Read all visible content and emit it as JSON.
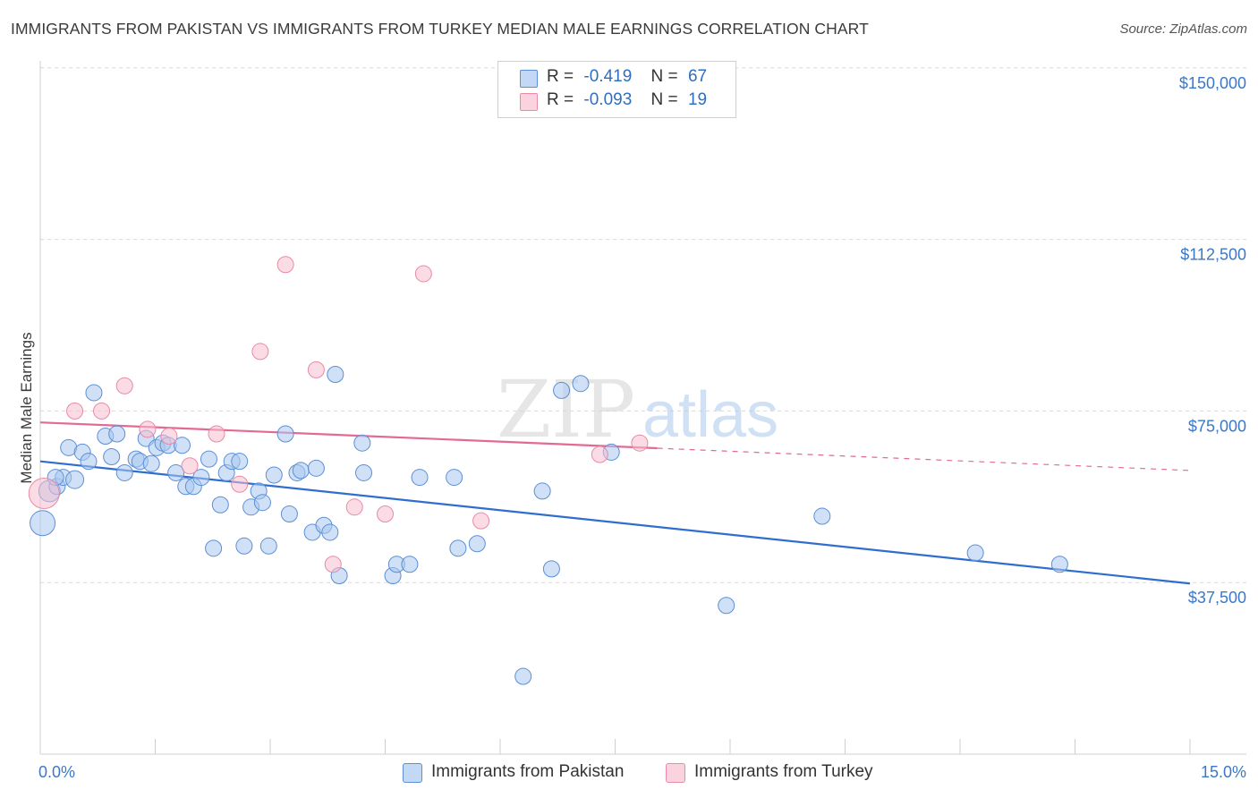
{
  "title": "IMMIGRANTS FROM PAKISTAN VS IMMIGRANTS FROM TURKEY MEDIAN MALE EARNINGS CORRELATION CHART",
  "source": "Source: ZipAtlas.com",
  "watermark": {
    "zip": "ZIP",
    "atlas": "atlas"
  },
  "stats": {
    "r_label": "R =",
    "n_label": "N =",
    "rows": [
      {
        "r": "-0.419",
        "n": "67"
      },
      {
        "r": "-0.093",
        "n": "19"
      }
    ]
  },
  "colors": {
    "pakistan_fill": "#a9c8f0",
    "pakistan_stroke": "#5b8fd6",
    "pakistan_line": "#2f6ecf",
    "turkey_fill": "#f7bfd0",
    "turkey_stroke": "#e88aa8",
    "turkey_line": "#e26a93",
    "axis_text": "#3a78c9",
    "grid": "#d9d9d9"
  },
  "chart_data": {
    "type": "scatter",
    "title": "IMMIGRANTS FROM PAKISTAN VS IMMIGRANTS FROM TURKEY MEDIAN MALE EARNINGS CORRELATION CHART",
    "xlabel": "",
    "ylabel": "Median Male Earnings",
    "xlim": [
      0,
      15
    ],
    "ylim": [
      0,
      157000
    ],
    "x_tick_labels": [
      "0.0%",
      "15.0%"
    ],
    "y_ticks": [
      37500,
      75000,
      112500,
      150000
    ],
    "y_tick_labels": [
      "$37,500",
      "$75,000",
      "$112,500",
      "$150,000"
    ],
    "grid": true,
    "legend_position": "bottom",
    "series": [
      {
        "name": "Immigrants from Pakistan",
        "trend": {
          "x": [
            0,
            15
          ],
          "y": [
            64000,
            37300
          ],
          "solid_to": 15
        },
        "points": [
          [
            0.03,
            50500,
            14
          ],
          [
            0.12,
            57500,
            12
          ],
          [
            0.22,
            58500,
            9
          ],
          [
            0.3,
            60500,
            9
          ],
          [
            0.45,
            60000,
            10
          ],
          [
            0.37,
            67000,
            9
          ],
          [
            0.55,
            66000,
            9
          ],
          [
            0.63,
            64000,
            9
          ],
          [
            0.7,
            79000,
            9
          ],
          [
            0.85,
            69500,
            9
          ],
          [
            0.93,
            65000,
            9
          ],
          [
            1.0,
            70000,
            9
          ],
          [
            1.1,
            61500,
            9
          ],
          [
            1.25,
            64500,
            9
          ],
          [
            1.3,
            64000,
            9
          ],
          [
            1.38,
            69000,
            9
          ],
          [
            1.45,
            63500,
            9
          ],
          [
            1.52,
            67000,
            9
          ],
          [
            1.6,
            68000,
            9
          ],
          [
            1.67,
            67500,
            9
          ],
          [
            1.77,
            61500,
            9
          ],
          [
            1.85,
            67500,
            9
          ],
          [
            1.9,
            58500,
            9
          ],
          [
            2.0,
            58500,
            9
          ],
          [
            2.1,
            60500,
            9
          ],
          [
            2.2,
            64500,
            9
          ],
          [
            2.26,
            45000,
            9
          ],
          [
            2.35,
            54500,
            9
          ],
          [
            2.43,
            61500,
            9
          ],
          [
            2.5,
            64000,
            9
          ],
          [
            2.6,
            64000,
            9
          ],
          [
            2.66,
            45500,
            9
          ],
          [
            2.75,
            54000,
            9
          ],
          [
            2.85,
            57500,
            9
          ],
          [
            2.9,
            55000,
            9
          ],
          [
            2.98,
            45500,
            9
          ],
          [
            3.05,
            61000,
            9
          ],
          [
            3.2,
            70000,
            9
          ],
          [
            3.25,
            52500,
            9
          ],
          [
            3.35,
            61500,
            9
          ],
          [
            3.4,
            62000,
            9
          ],
          [
            3.55,
            48500,
            9
          ],
          [
            3.6,
            62500,
            9
          ],
          [
            3.7,
            50000,
            9
          ],
          [
            3.78,
            48500,
            9
          ],
          [
            3.85,
            83000,
            9
          ],
          [
            3.9,
            39000,
            9
          ],
          [
            4.2,
            68000,
            9
          ],
          [
            4.22,
            61500,
            9
          ],
          [
            4.6,
            39000,
            9
          ],
          [
            4.65,
            41500,
            9
          ],
          [
            4.82,
            41500,
            9
          ],
          [
            4.95,
            60500,
            9
          ],
          [
            5.4,
            60500,
            9
          ],
          [
            5.45,
            45000,
            9
          ],
          [
            5.7,
            46000,
            9
          ],
          [
            6.3,
            17000,
            9
          ],
          [
            6.55,
            57500,
            9
          ],
          [
            6.67,
            40500,
            9
          ],
          [
            6.8,
            79500,
            9
          ],
          [
            7.05,
            81000,
            9
          ],
          [
            7.45,
            66000,
            9
          ],
          [
            8.95,
            32500,
            9
          ],
          [
            10.2,
            52000,
            9
          ],
          [
            12.2,
            44000,
            9
          ],
          [
            13.3,
            41500,
            9
          ],
          [
            0.2,
            60500,
            9
          ]
        ]
      },
      {
        "name": "Immigrants from Turkey",
        "trend": {
          "x": [
            0,
            15
          ],
          "y": [
            72500,
            62000
          ],
          "solid_to": 8.05
        },
        "points": [
          [
            0.05,
            57000,
            17
          ],
          [
            0.45,
            75000,
            9
          ],
          [
            0.8,
            75000,
            9
          ],
          [
            1.1,
            80500,
            9
          ],
          [
            1.4,
            71000,
            9
          ],
          [
            1.68,
            69500,
            9
          ],
          [
            1.95,
            63000,
            9
          ],
          [
            2.3,
            70000,
            9
          ],
          [
            2.6,
            59000,
            9
          ],
          [
            2.87,
            88000,
            9
          ],
          [
            3.2,
            107000,
            9
          ],
          [
            3.6,
            84000,
            9
          ],
          [
            3.82,
            41500,
            9
          ],
          [
            4.1,
            54000,
            9
          ],
          [
            4.5,
            52500,
            9
          ],
          [
            5.0,
            105000,
            9
          ],
          [
            5.75,
            51000,
            9
          ],
          [
            7.3,
            65500,
            9
          ],
          [
            7.82,
            68000,
            9
          ]
        ]
      }
    ]
  },
  "legend": {
    "pakistan": "Immigrants from Pakistan",
    "turkey": "Immigrants from Turkey"
  }
}
